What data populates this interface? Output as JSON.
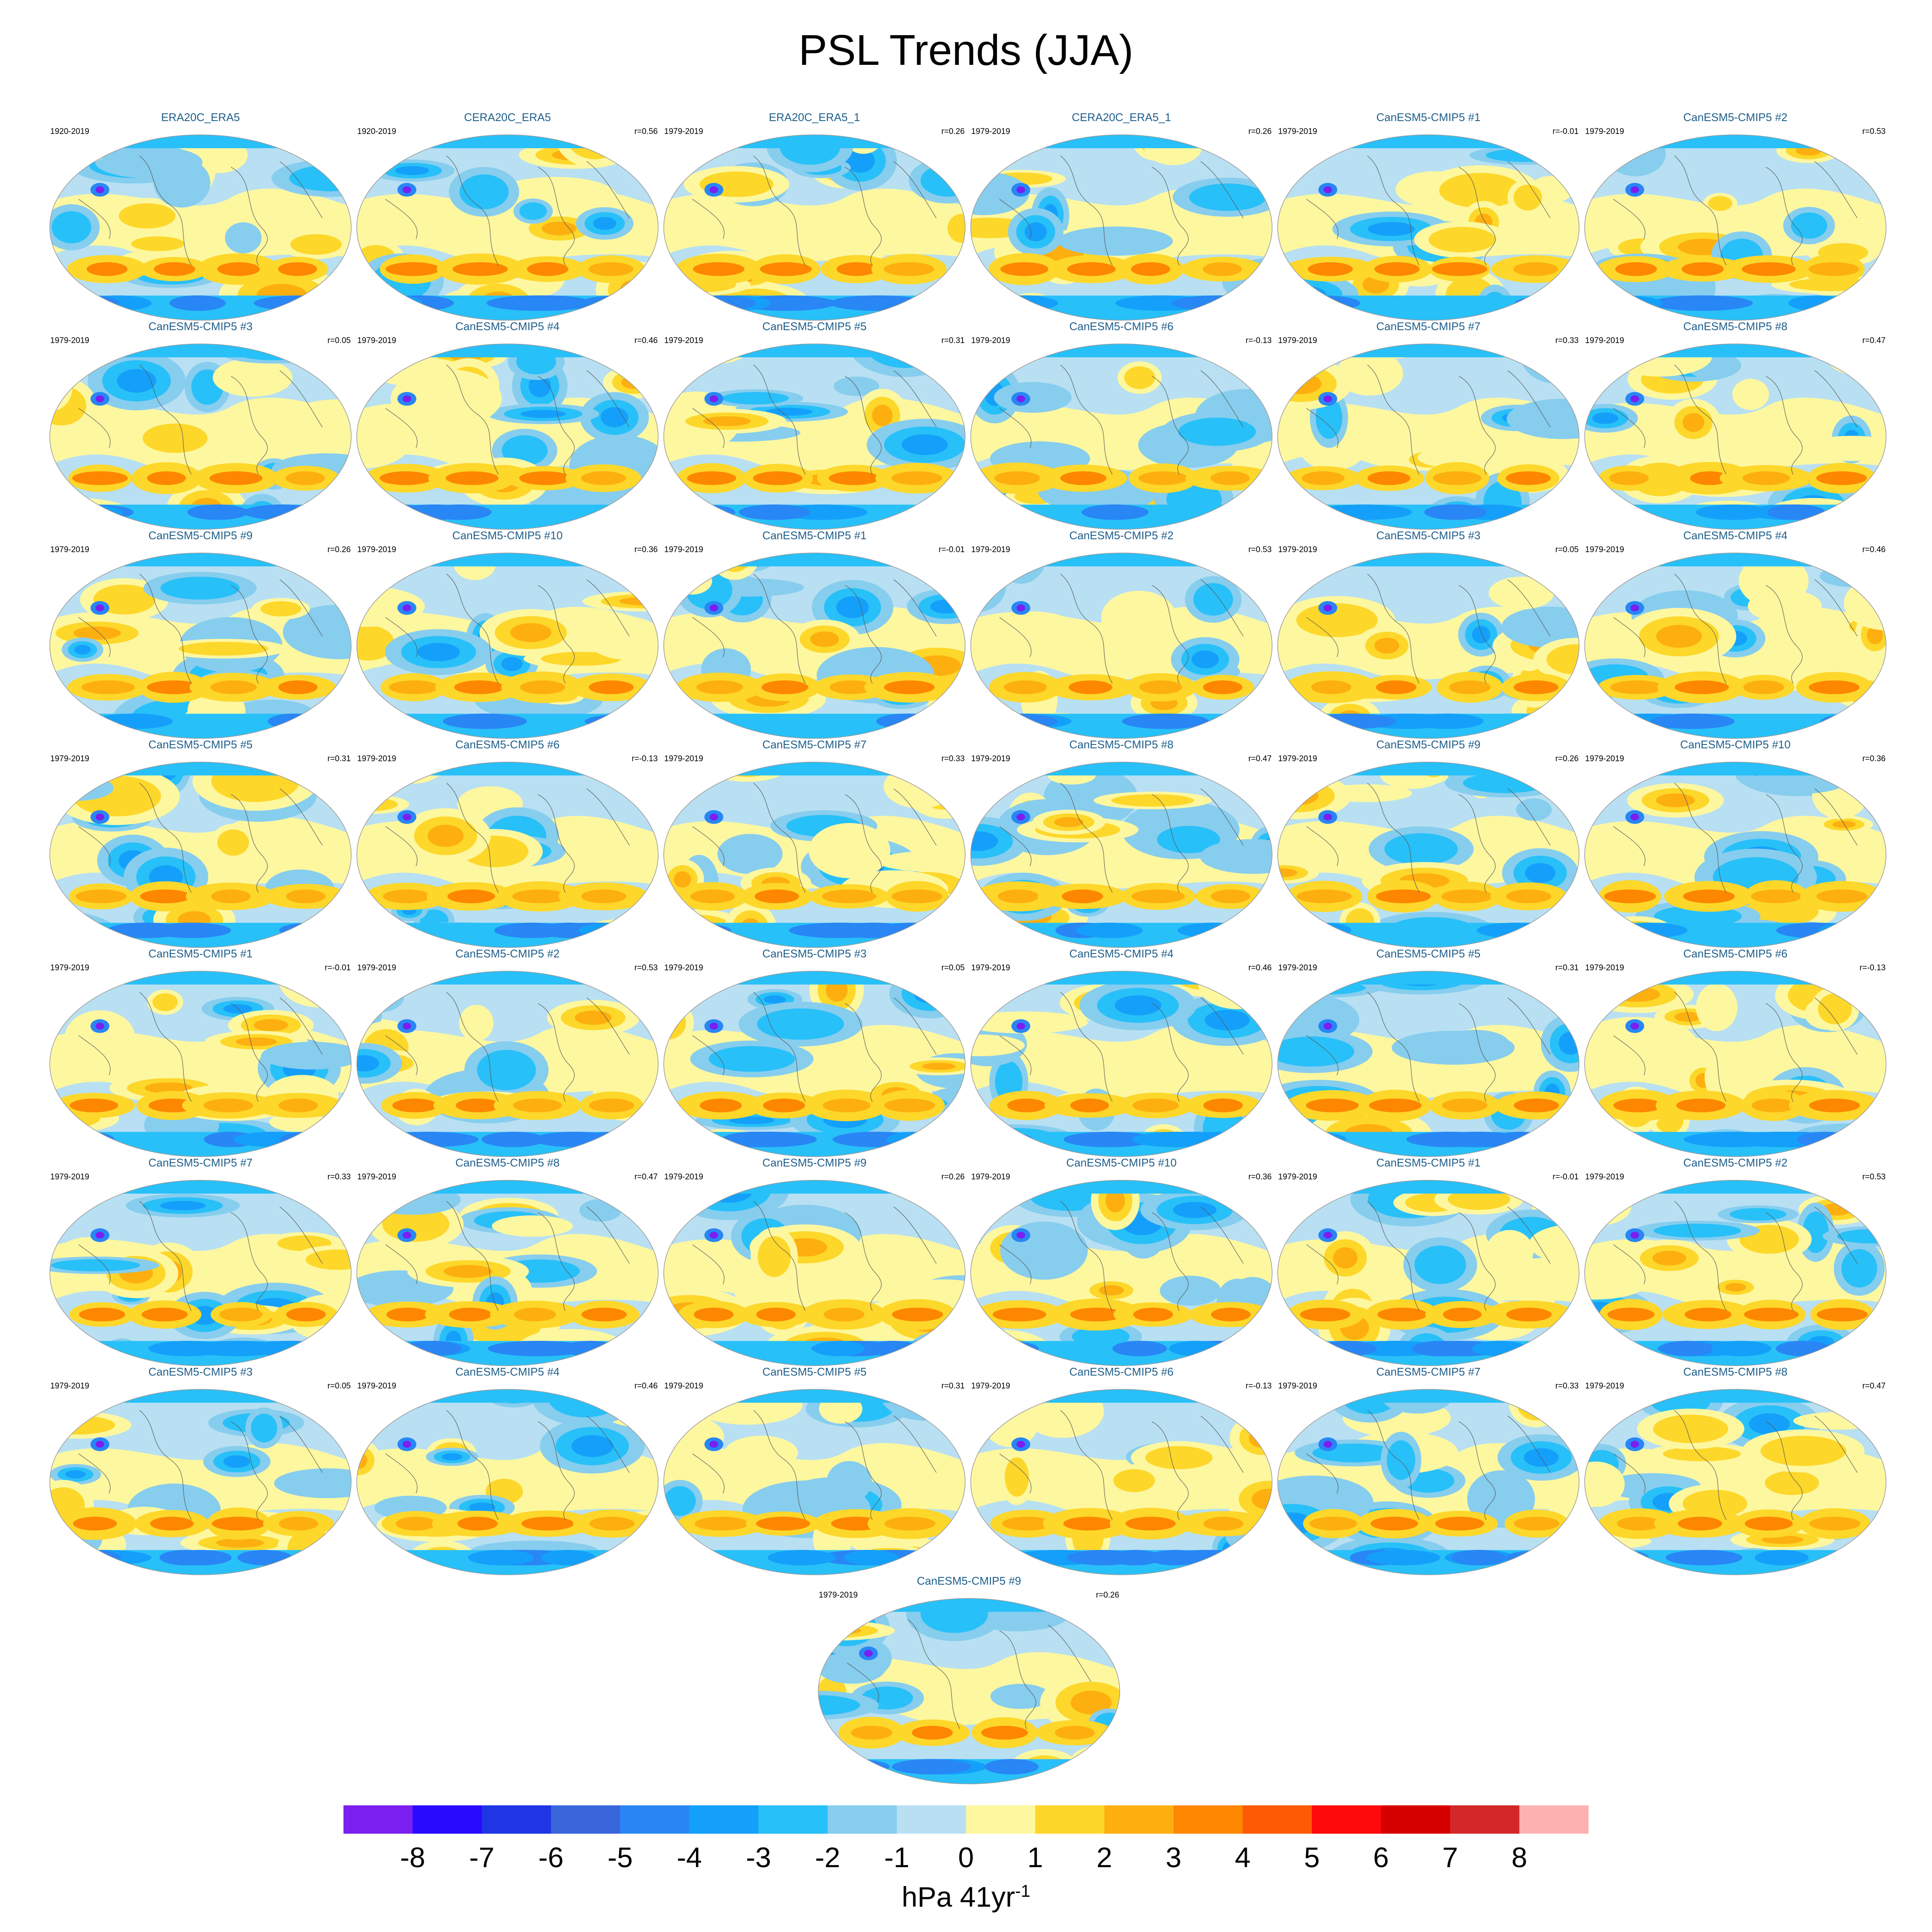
{
  "title": "PSL Trends (JJA)",
  "chart_data": {
    "type": "heatmap",
    "description_type": "panel grid of global contour maps",
    "title": "PSL Trends (JJA)",
    "colorbar": {
      "label": "hPa 41yr",
      "label_superscript": "-1",
      "ticks": [
        "-8",
        "-7",
        "-6",
        "-5",
        "-4",
        "-3",
        "-2",
        "-1",
        "0",
        "1",
        "2",
        "3",
        "4",
        "5",
        "6",
        "7",
        "8"
      ],
      "colors": [
        "#7a1ff0",
        "#2a0aff",
        "#1e36e6",
        "#3a66dc",
        "#2886f5",
        "#14a0fa",
        "#28c0f8",
        "#87cdee",
        "#b8e0f2",
        "#fdf7a0",
        "#fdd72a",
        "#fdaf10",
        "#fd8700",
        "#fd5a05",
        "#fd0a0a",
        "#d70000",
        "#d22828",
        "#fdb1b1"
      ]
    },
    "panels": [
      {
        "name": "ERA20C_ERA5",
        "period": "1920-2019",
        "r": ""
      },
      {
        "name": "CERA20C_ERA5",
        "period": "1920-2019",
        "r": "r=0.56"
      },
      {
        "name": "ERA20C_ERA5_1",
        "period": "1979-2019",
        "r": "r=0.26"
      },
      {
        "name": "CERA20C_ERA5_1",
        "period": "1979-2019",
        "r": "r=0.26"
      },
      {
        "name": "CanESM5-CMIP5 #1",
        "period": "1979-2019",
        "r": "r=-0.01"
      },
      {
        "name": "CanESM5-CMIP5 #2",
        "period": "1979-2019",
        "r": "r=0.53"
      },
      {
        "name": "CanESM5-CMIP5 #3",
        "period": "1979-2019",
        "r": "r=0.05"
      },
      {
        "name": "CanESM5-CMIP5 #4",
        "period": "1979-2019",
        "r": "r=0.46"
      },
      {
        "name": "CanESM5-CMIP5 #5",
        "period": "1979-2019",
        "r": "r=0.31"
      },
      {
        "name": "CanESM5-CMIP5 #6",
        "period": "1979-2019",
        "r": "r=-0.13"
      },
      {
        "name": "CanESM5-CMIP5 #7",
        "period": "1979-2019",
        "r": "r=0.33"
      },
      {
        "name": "CanESM5-CMIP5 #8",
        "period": "1979-2019",
        "r": "r=0.47"
      },
      {
        "name": "CanESM5-CMIP5 #9",
        "period": "1979-2019",
        "r": "r=0.26"
      },
      {
        "name": "CanESM5-CMIP5 #10",
        "period": "1979-2019",
        "r": "r=0.36"
      },
      {
        "name": "CanESM5-CMIP5 #1",
        "period": "1979-2019",
        "r": "r=-0.01"
      },
      {
        "name": "CanESM5-CMIP5 #2",
        "period": "1979-2019",
        "r": "r=0.53"
      },
      {
        "name": "CanESM5-CMIP5 #3",
        "period": "1979-2019",
        "r": "r=0.05"
      },
      {
        "name": "CanESM5-CMIP5 #4",
        "period": "1979-2019",
        "r": "r=0.46"
      },
      {
        "name": "CanESM5-CMIP5 #5",
        "period": "1979-2019",
        "r": "r=0.31"
      },
      {
        "name": "CanESM5-CMIP5 #6",
        "period": "1979-2019",
        "r": "r=-0.13"
      },
      {
        "name": "CanESM5-CMIP5 #7",
        "period": "1979-2019",
        "r": "r=0.33"
      },
      {
        "name": "CanESM5-CMIP5 #8",
        "period": "1979-2019",
        "r": "r=0.47"
      },
      {
        "name": "CanESM5-CMIP5 #9",
        "period": "1979-2019",
        "r": "r=0.26"
      },
      {
        "name": "CanESM5-CMIP5 #10",
        "period": "1979-2019",
        "r": "r=0.36"
      },
      {
        "name": "CanESM5-CMIP5 #1",
        "period": "1979-2019",
        "r": "r=-0.01"
      },
      {
        "name": "CanESM5-CMIP5 #2",
        "period": "1979-2019",
        "r": "r=0.53"
      },
      {
        "name": "CanESM5-CMIP5 #3",
        "period": "1979-2019",
        "r": "r=0.05"
      },
      {
        "name": "CanESM5-CMIP5 #4",
        "period": "1979-2019",
        "r": "r=0.46"
      },
      {
        "name": "CanESM5-CMIP5 #5",
        "period": "1979-2019",
        "r": "r=0.31"
      },
      {
        "name": "CanESM5-CMIP5 #6",
        "period": "1979-2019",
        "r": "r=-0.13"
      },
      {
        "name": "CanESM5-CMIP5 #7",
        "period": "1979-2019",
        "r": "r=0.33"
      },
      {
        "name": "CanESM5-CMIP5 #8",
        "period": "1979-2019",
        "r": "r=0.47"
      },
      {
        "name": "CanESM5-CMIP5 #9",
        "period": "1979-2019",
        "r": "r=0.26"
      },
      {
        "name": "CanESM5-CMIP5 #10",
        "period": "1979-2019",
        "r": "r=0.36"
      },
      {
        "name": "CanESM5-CMIP5 #1",
        "period": "1979-2019",
        "r": "r=-0.01"
      },
      {
        "name": "CanESM5-CMIP5 #2",
        "period": "1979-2019",
        "r": "r=0.53"
      },
      {
        "name": "CanESM5-CMIP5 #3",
        "period": "1979-2019",
        "r": "r=0.05"
      },
      {
        "name": "CanESM5-CMIP5 #4",
        "period": "1979-2019",
        "r": "r=0.46"
      },
      {
        "name": "CanESM5-CMIP5 #5",
        "period": "1979-2019",
        "r": "r=0.31"
      },
      {
        "name": "CanESM5-CMIP5 #6",
        "period": "1979-2019",
        "r": "r=-0.13"
      },
      {
        "name": "CanESM5-CMIP5 #7",
        "period": "1979-2019",
        "r": "r=0.33"
      },
      {
        "name": "CanESM5-CMIP5 #8",
        "period": "1979-2019",
        "r": "r=0.47"
      },
      {
        "name": "CanESM5-CMIP5 #9",
        "period": "1979-2019",
        "r": "r=0.26"
      }
    ]
  }
}
